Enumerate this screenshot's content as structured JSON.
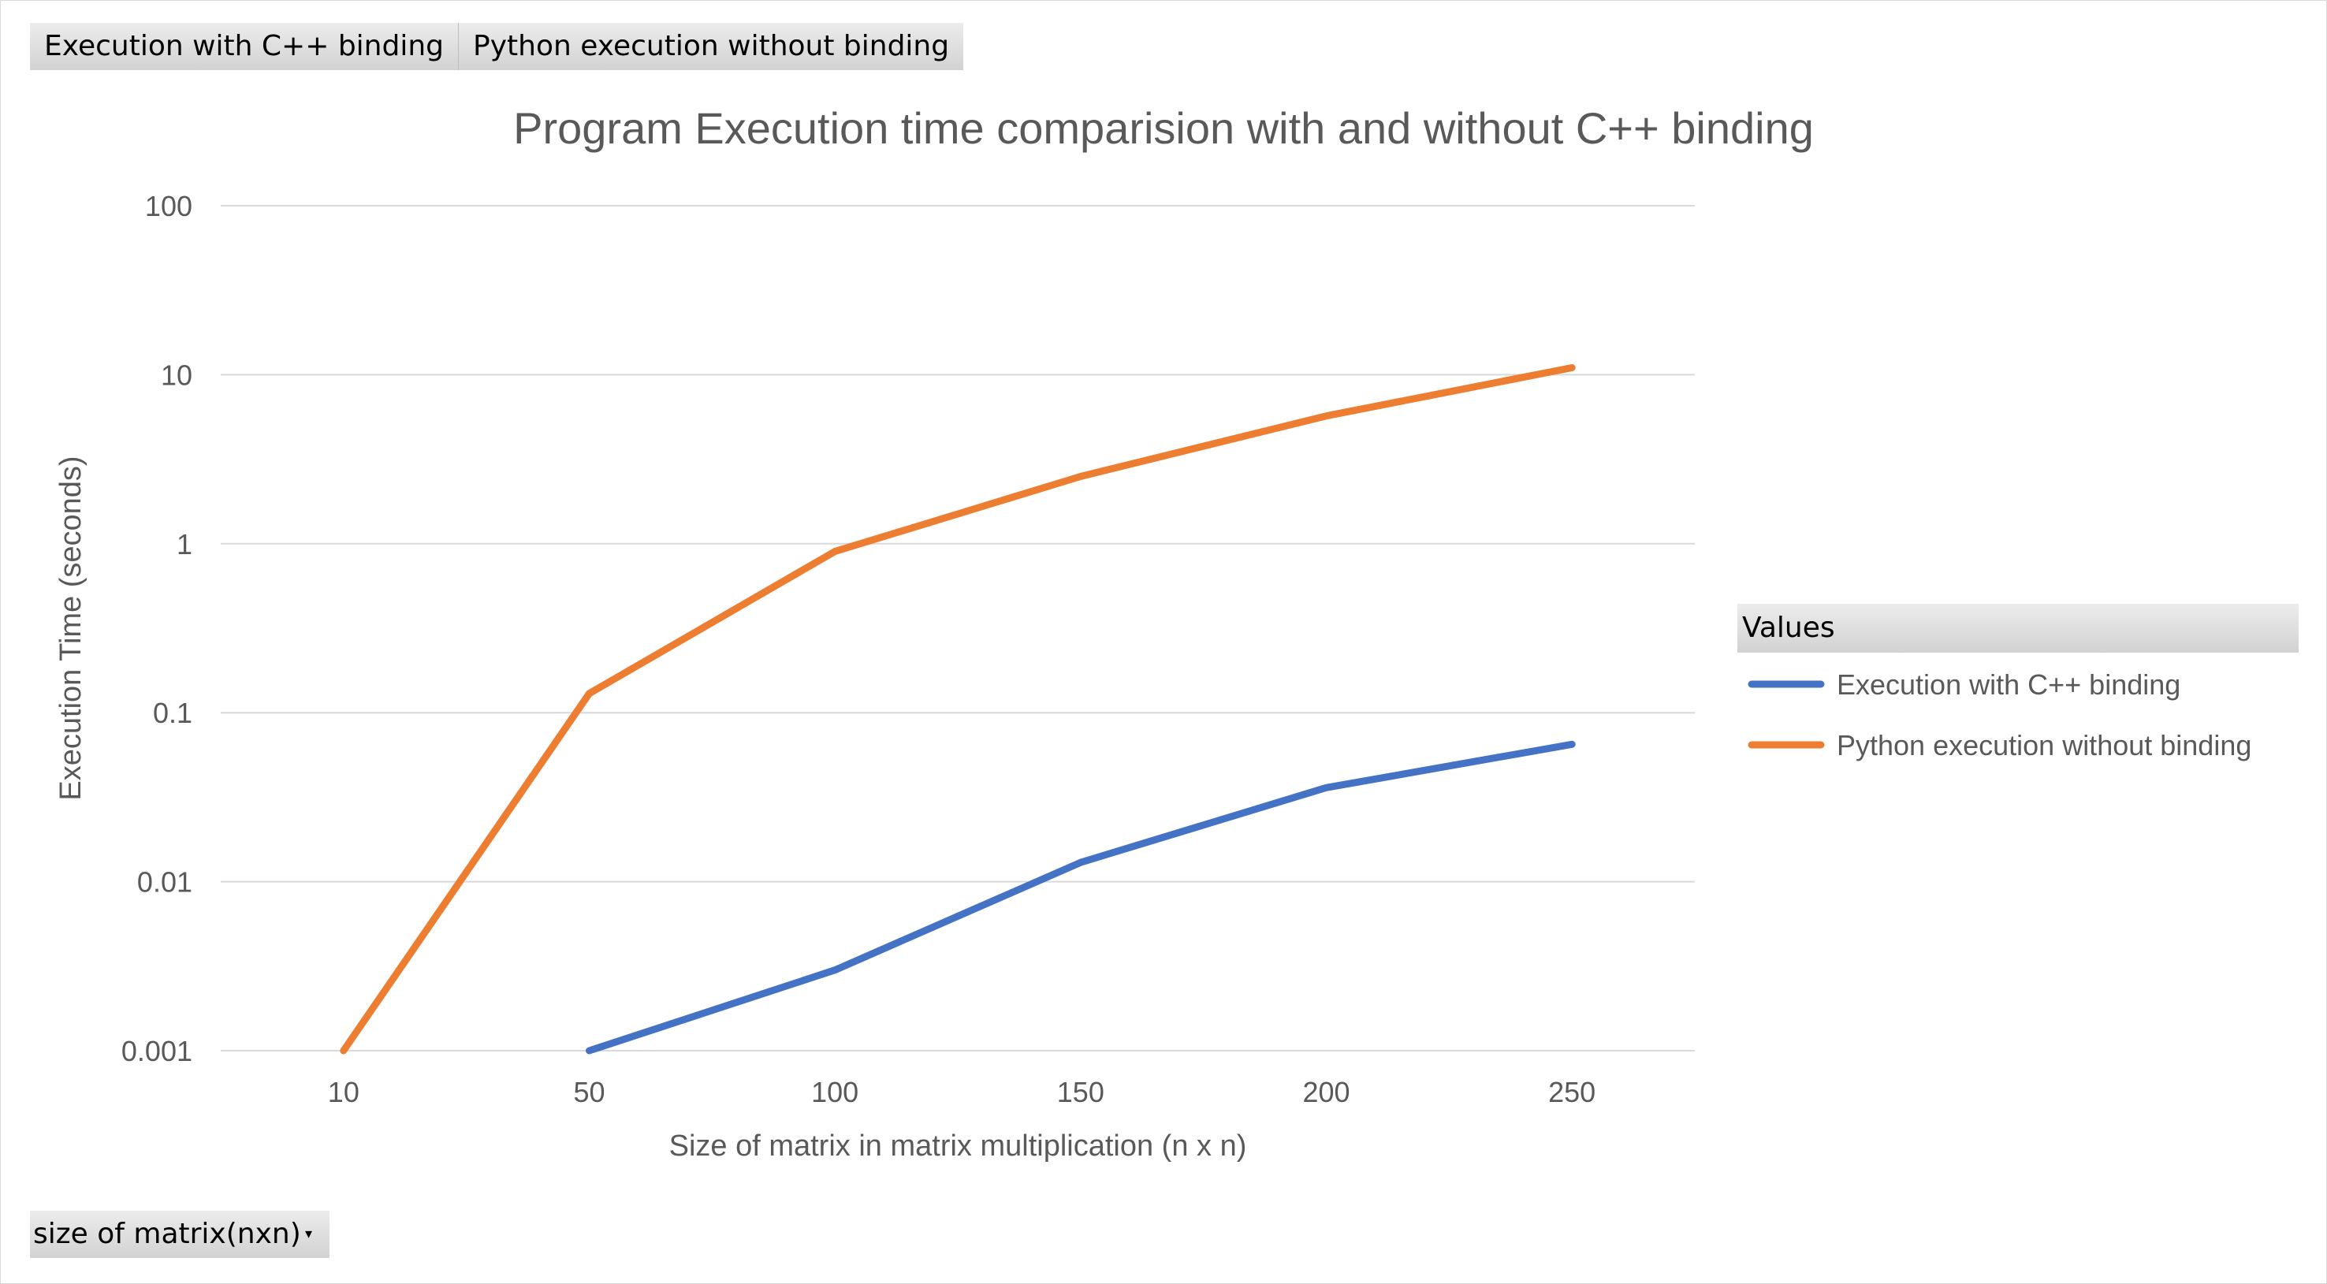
{
  "field_buttons": [
    "Execution with C++ binding",
    "Python execution without binding"
  ],
  "legend_header": "Values",
  "axis_field": {
    "label": "size of matrix(nxn)",
    "dropdown_icon": "dropdown-arrow-icon"
  },
  "chart_data": {
    "type": "line",
    "title": "Program Execution time comparision with and without C++ binding",
    "xlabel": "Size of matrix in matrix multiplication (n x n)",
    "ylabel": "Execution Time (seconds)",
    "categories": [
      "10",
      "50",
      "100",
      "150",
      "200",
      "250"
    ],
    "y_scale": "log",
    "ylim": [
      0.001,
      100
    ],
    "y_ticks": [
      "0.001",
      "0.01",
      "0.1",
      "1",
      "10",
      "100"
    ],
    "y_tick_values": [
      0.001,
      0.01,
      0.1,
      1,
      10,
      100
    ],
    "grid": true,
    "legend_position": "right",
    "series": [
      {
        "name": "Execution with C++ binding",
        "color": "#4472c4",
        "values": [
          null,
          0.001,
          0.003,
          0.013,
          0.036,
          0.065
        ]
      },
      {
        "name": "Python execution without binding",
        "color": "#ed7d31",
        "values": [
          0.001,
          0.13,
          0.9,
          2.5,
          5.7,
          11
        ]
      }
    ]
  }
}
